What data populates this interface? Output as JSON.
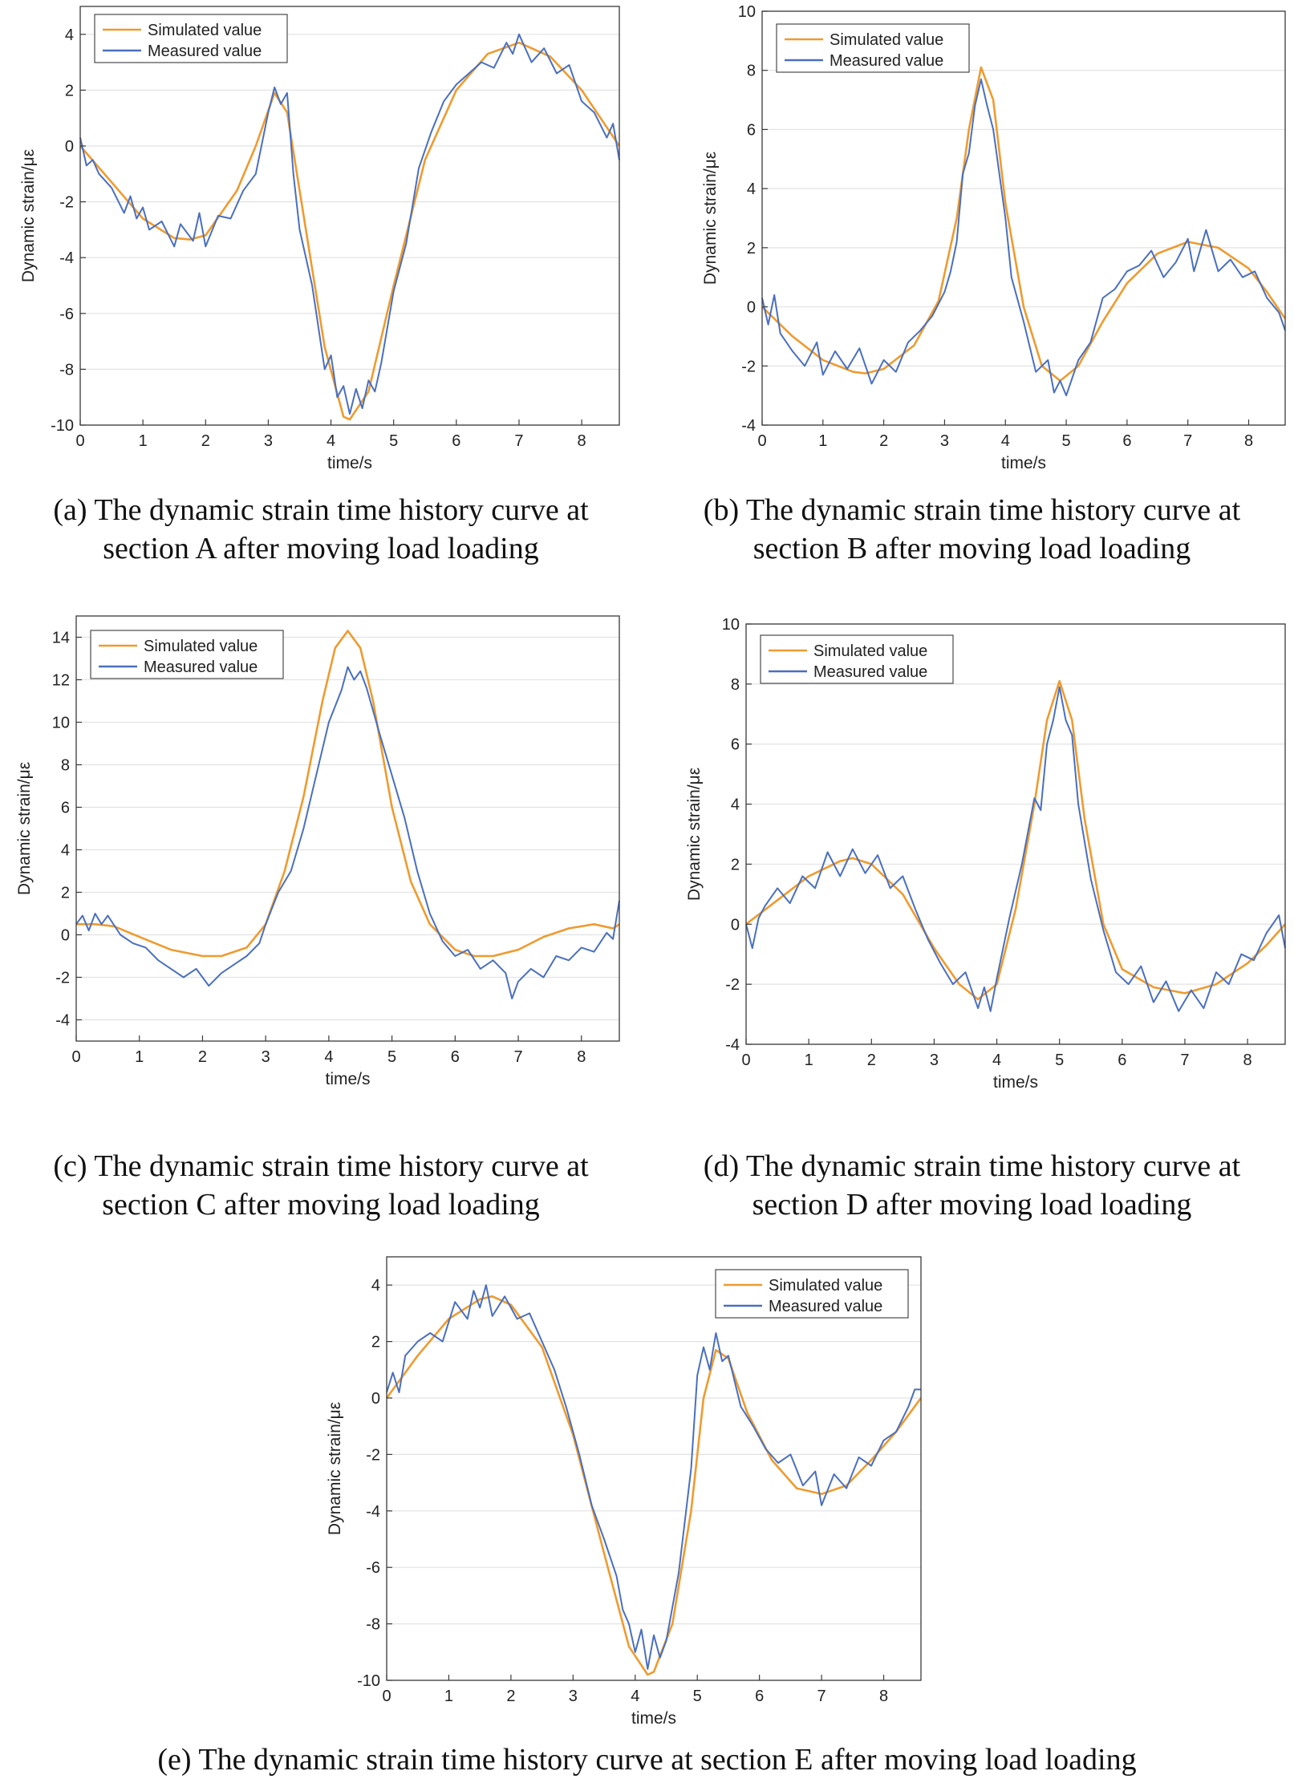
{
  "legend": {
    "simulated": "Simulated value",
    "measured": "Measured value"
  },
  "colors": {
    "simulated": "#EE9B2F",
    "measured": "#4A6FBF"
  },
  "chart_data": [
    {
      "id": "a",
      "type": "line",
      "xlabel": "time/s",
      "ylabel": "Dynamic strain/με",
      "xlim": [
        0,
        8.6
      ],
      "ylim": [
        -10,
        5
      ],
      "xticks": [
        0,
        1,
        2,
        3,
        4,
        5,
        6,
        7,
        8
      ],
      "yticks": [
        -10,
        -8,
        -6,
        -4,
        -2,
        0,
        2,
        4
      ],
      "legend_position": "top-left",
      "caption_line1": "(a) The dynamic strain time history curve at",
      "caption_line2": "section A after moving load loading",
      "series": [
        {
          "name": "Simulated value",
          "x": [
            0,
            0.5,
            1.0,
            1.5,
            1.75,
            2.0,
            2.5,
            2.8,
            3.1,
            3.3,
            3.6,
            3.9,
            4.2,
            4.3,
            4.6,
            5.0,
            5.5,
            6.0,
            6.5,
            7.0,
            7.5,
            8.0,
            8.3,
            8.6
          ],
          "y": [
            0,
            -1.3,
            -2.6,
            -3.3,
            -3.35,
            -3.2,
            -1.6,
            0,
            1.9,
            1.2,
            -3.0,
            -7.2,
            -9.7,
            -9.8,
            -8.8,
            -5.0,
            -0.5,
            2.0,
            3.3,
            3.7,
            3.2,
            2.0,
            1.0,
            0
          ]
        },
        {
          "name": "Measured value",
          "x": [
            0,
            0.1,
            0.2,
            0.3,
            0.5,
            0.7,
            0.8,
            0.9,
            1.0,
            1.1,
            1.3,
            1.5,
            1.6,
            1.8,
            1.9,
            2.0,
            2.2,
            2.4,
            2.6,
            2.8,
            3.0,
            3.1,
            3.2,
            3.3,
            3.4,
            3.5,
            3.7,
            3.8,
            3.9,
            4.0,
            4.1,
            4.2,
            4.3,
            4.4,
            4.5,
            4.6,
            4.7,
            4.8,
            5.0,
            5.2,
            5.4,
            5.6,
            5.8,
            6.0,
            6.2,
            6.4,
            6.6,
            6.8,
            6.9,
            7.0,
            7.2,
            7.4,
            7.6,
            7.8,
            8.0,
            8.2,
            8.4,
            8.5,
            8.6
          ],
          "y": [
            0.3,
            -0.7,
            -0.5,
            -1.0,
            -1.5,
            -2.4,
            -1.8,
            -2.6,
            -2.2,
            -3.0,
            -2.7,
            -3.6,
            -2.8,
            -3.4,
            -2.4,
            -3.6,
            -2.5,
            -2.6,
            -1.6,
            -1.0,
            1.2,
            2.1,
            1.5,
            1.9,
            -1.0,
            -3.0,
            -5.0,
            -6.5,
            -8.0,
            -7.5,
            -9.0,
            -8.6,
            -9.6,
            -8.7,
            -9.4,
            -8.4,
            -8.8,
            -7.8,
            -5.2,
            -3.5,
            -0.8,
            0.5,
            1.6,
            2.2,
            2.6,
            3.0,
            2.8,
            3.7,
            3.3,
            4.0,
            3.0,
            3.5,
            2.6,
            2.9,
            1.6,
            1.2,
            0.3,
            0.8,
            -0.5
          ]
        }
      ]
    },
    {
      "id": "b",
      "type": "line",
      "xlabel": "time/s",
      "ylabel": "Dynamic strain/με",
      "xlim": [
        0,
        8.6
      ],
      "ylim": [
        -4,
        10
      ],
      "xticks": [
        0,
        1,
        2,
        3,
        4,
        5,
        6,
        7,
        8
      ],
      "yticks": [
        -4,
        -2,
        0,
        2,
        4,
        6,
        8,
        10
      ],
      "legend_position": "top-left",
      "caption_line1": "(b) The dynamic strain time history curve at",
      "caption_line2": "section B after moving load loading",
      "series": [
        {
          "name": "Simulated value",
          "x": [
            0,
            0.5,
            1.0,
            1.5,
            1.7,
            2.0,
            2.5,
            2.9,
            3.2,
            3.4,
            3.6,
            3.8,
            4.0,
            4.3,
            4.6,
            4.9,
            5.2,
            5.6,
            6.0,
            6.5,
            7.0,
            7.5,
            8.0,
            8.3,
            8.6
          ],
          "y": [
            0,
            -1.0,
            -1.8,
            -2.2,
            -2.25,
            -2.1,
            -1.3,
            0.2,
            3.0,
            6.0,
            8.1,
            7.0,
            3.5,
            0,
            -2.0,
            -2.5,
            -2.0,
            -0.5,
            0.8,
            1.8,
            2.2,
            2.0,
            1.3,
            0.5,
            -0.4
          ]
        },
        {
          "name": "Measured value",
          "x": [
            0,
            0.1,
            0.2,
            0.3,
            0.5,
            0.7,
            0.9,
            1.0,
            1.2,
            1.4,
            1.6,
            1.8,
            2.0,
            2.2,
            2.4,
            2.6,
            2.8,
            3.0,
            3.1,
            3.2,
            3.3,
            3.4,
            3.5,
            3.6,
            3.7,
            3.8,
            3.9,
            4.0,
            4.1,
            4.3,
            4.5,
            4.7,
            4.8,
            4.9,
            5.0,
            5.2,
            5.4,
            5.6,
            5.8,
            6.0,
            6.2,
            6.4,
            6.6,
            6.8,
            7.0,
            7.1,
            7.3,
            7.5,
            7.7,
            7.9,
            8.1,
            8.3,
            8.5,
            8.6
          ],
          "y": [
            0.3,
            -0.6,
            0.4,
            -0.9,
            -1.5,
            -2.0,
            -1.2,
            -2.3,
            -1.5,
            -2.1,
            -1.4,
            -2.6,
            -1.8,
            -2.2,
            -1.2,
            -0.8,
            -0.3,
            0.5,
            1.2,
            2.2,
            4.5,
            5.2,
            6.8,
            7.7,
            6.8,
            6.0,
            4.5,
            3.0,
            1.0,
            -0.5,
            -2.2,
            -1.8,
            -2.9,
            -2.5,
            -3.0,
            -1.8,
            -1.2,
            0.3,
            0.6,
            1.2,
            1.4,
            1.9,
            1.0,
            1.5,
            2.3,
            1.2,
            2.6,
            1.2,
            1.6,
            1.0,
            1.2,
            0.3,
            -0.2,
            -0.8
          ]
        }
      ]
    },
    {
      "id": "c",
      "type": "line",
      "xlabel": "time/s",
      "ylabel": "Dynamic strain/με",
      "xlim": [
        0,
        8.6
      ],
      "ylim": [
        -5,
        15
      ],
      "xticks": [
        0,
        1,
        2,
        3,
        4,
        5,
        6,
        7,
        8
      ],
      "yticks": [
        -4,
        -2,
        0,
        2,
        4,
        6,
        8,
        10,
        12,
        14
      ],
      "legend_position": "top-left",
      "caption_line1": "(c) The dynamic strain time history curve at",
      "caption_line2": "section C after moving load loading",
      "series": [
        {
          "name": "Simulated value",
          "x": [
            0,
            0.3,
            0.6,
            1.0,
            1.5,
            2.0,
            2.3,
            2.7,
            3.0,
            3.3,
            3.6,
            3.9,
            4.1,
            4.3,
            4.5,
            4.7,
            5.0,
            5.3,
            5.6,
            6.0,
            6.3,
            6.6,
            7.0,
            7.4,
            7.8,
            8.2,
            8.5,
            8.6
          ],
          "y": [
            0.5,
            0.5,
            0.4,
            -0.1,
            -0.7,
            -1.0,
            -1.0,
            -0.6,
            0.5,
            3.0,
            6.5,
            11.0,
            13.5,
            14.3,
            13.5,
            11.0,
            6.0,
            2.5,
            0.5,
            -0.7,
            -1.0,
            -1.0,
            -0.7,
            -0.1,
            0.3,
            0.5,
            0.3,
            0.5
          ]
        },
        {
          "name": "Measured value",
          "x": [
            0,
            0.1,
            0.2,
            0.3,
            0.4,
            0.5,
            0.7,
            0.9,
            1.1,
            1.3,
            1.5,
            1.7,
            1.9,
            2.1,
            2.3,
            2.5,
            2.7,
            2.9,
            3.0,
            3.2,
            3.4,
            3.6,
            3.8,
            4.0,
            4.2,
            4.3,
            4.4,
            4.5,
            4.6,
            4.8,
            5.0,
            5.2,
            5.4,
            5.6,
            5.8,
            6.0,
            6.2,
            6.4,
            6.6,
            6.8,
            6.9,
            7.0,
            7.2,
            7.4,
            7.6,
            7.8,
            8.0,
            8.2,
            8.4,
            8.5,
            8.6
          ],
          "y": [
            0.5,
            0.9,
            0.2,
            1.0,
            0.5,
            0.9,
            0.0,
            -0.4,
            -0.6,
            -1.2,
            -1.6,
            -2.0,
            -1.6,
            -2.4,
            -1.8,
            -1.4,
            -1.0,
            -0.4,
            0.5,
            2.0,
            3.0,
            5.0,
            7.5,
            10.0,
            11.5,
            12.6,
            12.0,
            12.4,
            11.6,
            9.5,
            7.5,
            5.5,
            3.0,
            1.0,
            -0.3,
            -1.0,
            -0.7,
            -1.6,
            -1.2,
            -1.8,
            -3.0,
            -2.2,
            -1.6,
            -2.0,
            -1.0,
            -1.2,
            -0.6,
            -0.8,
            0.1,
            -0.2,
            1.6
          ]
        }
      ]
    },
    {
      "id": "d",
      "type": "line",
      "xlabel": "time/s",
      "ylabel": "Dynamic strain/με",
      "xlim": [
        0,
        8.6
      ],
      "ylim": [
        -4,
        10
      ],
      "xticks": [
        0,
        1,
        2,
        3,
        4,
        5,
        6,
        7,
        8
      ],
      "yticks": [
        -4,
        -2,
        0,
        2,
        4,
        6,
        8,
        10
      ],
      "legend_position": "top-left",
      "caption_line1": "(d) The dynamic strain time history curve at",
      "caption_line2": "section D after moving load loading",
      "series": [
        {
          "name": "Simulated value",
          "x": [
            0,
            0.5,
            1.0,
            1.5,
            1.7,
            2.0,
            2.5,
            3.0,
            3.4,
            3.7,
            4.0,
            4.3,
            4.6,
            4.8,
            5.0,
            5.2,
            5.4,
            5.7,
            6.0,
            6.5,
            7.0,
            7.5,
            8.0,
            8.3,
            8.6
          ],
          "y": [
            0,
            0.8,
            1.6,
            2.1,
            2.2,
            2.0,
            1.0,
            -0.8,
            -2.0,
            -2.5,
            -2.0,
            0.5,
            4.0,
            6.8,
            8.1,
            6.8,
            3.5,
            0,
            -1.5,
            -2.1,
            -2.3,
            -2.0,
            -1.3,
            -0.7,
            0
          ]
        },
        {
          "name": "Measured value",
          "x": [
            0,
            0.1,
            0.2,
            0.3,
            0.5,
            0.7,
            0.9,
            1.1,
            1.3,
            1.5,
            1.7,
            1.9,
            2.1,
            2.3,
            2.5,
            2.7,
            2.9,
            3.1,
            3.3,
            3.5,
            3.7,
            3.8,
            3.9,
            4.0,
            4.2,
            4.4,
            4.6,
            4.7,
            4.8,
            4.9,
            5.0,
            5.1,
            5.2,
            5.3,
            5.5,
            5.7,
            5.9,
            6.1,
            6.3,
            6.5,
            6.7,
            6.9,
            7.1,
            7.3,
            7.5,
            7.7,
            7.9,
            8.1,
            8.3,
            8.5,
            8.6
          ],
          "y": [
            0,
            -0.8,
            0.2,
            0.6,
            1.2,
            0.7,
            1.6,
            1.2,
            2.4,
            1.6,
            2.5,
            1.7,
            2.3,
            1.2,
            1.6,
            0.5,
            -0.5,
            -1.3,
            -2.0,
            -1.6,
            -2.8,
            -2.1,
            -2.9,
            -1.8,
            0.2,
            2.0,
            4.2,
            3.8,
            6.0,
            6.8,
            7.9,
            6.8,
            6.3,
            4.0,
            1.5,
            -0.2,
            -1.6,
            -2.0,
            -1.4,
            -2.6,
            -1.9,
            -2.9,
            -2.2,
            -2.8,
            -1.6,
            -2.0,
            -1.0,
            -1.2,
            -0.3,
            0.3,
            -0.8
          ]
        }
      ]
    },
    {
      "id": "e",
      "type": "line",
      "xlabel": "time/s",
      "ylabel": "Dynamic strain/με",
      "xlim": [
        0,
        8.6
      ],
      "ylim": [
        -10,
        5
      ],
      "xticks": [
        0,
        1,
        2,
        3,
        4,
        5,
        6,
        7,
        8
      ],
      "yticks": [
        -10,
        -8,
        -6,
        -4,
        -2,
        0,
        2,
        4
      ],
      "legend_position": "top-right",
      "caption_line1": "(e) The dynamic strain time history curve at section E after moving load loading",
      "caption_line2": "",
      "series": [
        {
          "name": "Simulated value",
          "x": [
            0,
            0.5,
            1.0,
            1.5,
            1.7,
            2.0,
            2.5,
            3.0,
            3.5,
            3.9,
            4.2,
            4.3,
            4.6,
            4.9,
            5.1,
            5.3,
            5.5,
            5.8,
            6.2,
            6.6,
            7.0,
            7.4,
            7.8,
            8.2,
            8.6
          ],
          "y": [
            0,
            1.5,
            2.8,
            3.5,
            3.6,
            3.3,
            1.8,
            -1.3,
            -5.5,
            -8.8,
            -9.8,
            -9.7,
            -8.0,
            -4.0,
            0,
            1.7,
            1.4,
            -0.5,
            -2.2,
            -3.2,
            -3.4,
            -3.1,
            -2.2,
            -1.2,
            0
          ]
        },
        {
          "name": "Measured value",
          "x": [
            0,
            0.1,
            0.2,
            0.3,
            0.5,
            0.7,
            0.9,
            1.1,
            1.3,
            1.4,
            1.5,
            1.6,
            1.7,
            1.9,
            2.1,
            2.3,
            2.5,
            2.7,
            2.9,
            3.1,
            3.3,
            3.5,
            3.7,
            3.8,
            3.9,
            4.0,
            4.1,
            4.2,
            4.3,
            4.4,
            4.5,
            4.7,
            4.9,
            5.0,
            5.1,
            5.2,
            5.3,
            5.4,
            5.5,
            5.7,
            5.9,
            6.1,
            6.3,
            6.5,
            6.7,
            6.9,
            7.0,
            7.2,
            7.4,
            7.6,
            7.8,
            8.0,
            8.2,
            8.4,
            8.5,
            8.6
          ],
          "y": [
            0.2,
            0.9,
            0.2,
            1.5,
            2.0,
            2.3,
            2.0,
            3.4,
            2.8,
            3.8,
            3.2,
            4.0,
            2.9,
            3.6,
            2.8,
            3.0,
            2.0,
            1.0,
            -0.4,
            -2.0,
            -3.8,
            -5.0,
            -6.3,
            -7.5,
            -8.0,
            -9.0,
            -8.2,
            -9.6,
            -8.4,
            -9.2,
            -8.6,
            -6.2,
            -2.5,
            0.8,
            1.8,
            1.0,
            2.3,
            1.3,
            1.5,
            -0.3,
            -1.0,
            -1.8,
            -2.3,
            -2.0,
            -3.1,
            -2.6,
            -3.8,
            -2.7,
            -3.2,
            -2.1,
            -2.4,
            -1.5,
            -1.2,
            -0.3,
            0.3,
            0.3
          ]
        }
      ]
    }
  ]
}
